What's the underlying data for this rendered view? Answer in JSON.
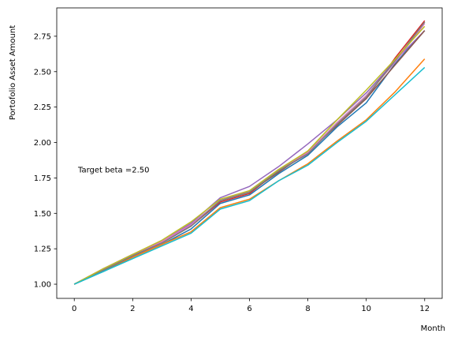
{
  "chart_data": {
    "type": "line",
    "title": "",
    "xlabel": "Month",
    "ylabel": "Portofolio Asset Amount",
    "annotation": "Target beta =2.50",
    "xlim": [
      -0.6,
      12.6
    ],
    "ylim": [
      0.9,
      2.95
    ],
    "x_ticks": [
      0,
      2,
      4,
      6,
      8,
      10,
      12
    ],
    "y_ticks": [
      "1.00",
      "1.25",
      "1.50",
      "1.75",
      "2.00",
      "2.25",
      "2.50",
      "2.75"
    ],
    "grid": false,
    "x": [
      0,
      1,
      2,
      3,
      4,
      5,
      6,
      7,
      8,
      9,
      10,
      11,
      12
    ],
    "series": [
      {
        "color": "#1f77b4",
        "values": [
          1.0,
          1.09,
          1.19,
          1.28,
          1.39,
          1.57,
          1.63,
          1.78,
          1.91,
          2.11,
          2.28,
          2.56,
          2.79
        ]
      },
      {
        "color": "#ff7f0e",
        "values": [
          1.0,
          1.1,
          1.19,
          1.28,
          1.37,
          1.54,
          1.6,
          1.73,
          1.85,
          2.01,
          2.16,
          2.36,
          2.59
        ]
      },
      {
        "color": "#2ca02c",
        "values": [
          1.0,
          1.11,
          1.2,
          1.3,
          1.42,
          1.59,
          1.65,
          1.8,
          1.93,
          2.14,
          2.33,
          2.58,
          2.85
        ]
      },
      {
        "color": "#d62728",
        "values": [
          1.0,
          1.1,
          1.2,
          1.29,
          1.41,
          1.58,
          1.64,
          1.8,
          1.92,
          2.13,
          2.31,
          2.6,
          2.86
        ]
      },
      {
        "color": "#9467bd",
        "values": [
          1.0,
          1.11,
          1.21,
          1.3,
          1.43,
          1.61,
          1.69,
          1.83,
          1.99,
          2.16,
          2.35,
          2.58,
          2.79
        ]
      },
      {
        "color": "#8c564b",
        "values": [
          1.0,
          1.1,
          1.2,
          1.29,
          1.41,
          1.59,
          1.65,
          1.79,
          1.93,
          2.12,
          2.31,
          2.55,
          2.79
        ]
      },
      {
        "color": "#e377c2",
        "values": [
          1.0,
          1.11,
          1.21,
          1.3,
          1.42,
          1.59,
          1.66,
          1.81,
          1.93,
          2.14,
          2.33,
          2.57,
          2.84
        ]
      },
      {
        "color": "#7f7f7f",
        "values": [
          1.0,
          1.1,
          1.2,
          1.29,
          1.41,
          1.59,
          1.65,
          1.8,
          1.92,
          2.13,
          2.32,
          2.58,
          2.85
        ]
      },
      {
        "color": "#bcbd22",
        "values": [
          1.0,
          1.11,
          1.21,
          1.31,
          1.44,
          1.6,
          1.66,
          1.81,
          1.94,
          2.16,
          2.37,
          2.59,
          2.82
        ]
      },
      {
        "color": "#17becf",
        "values": [
          1.0,
          1.09,
          1.18,
          1.27,
          1.36,
          1.53,
          1.59,
          1.73,
          1.84,
          2.0,
          2.15,
          2.34,
          2.53
        ]
      }
    ]
  }
}
